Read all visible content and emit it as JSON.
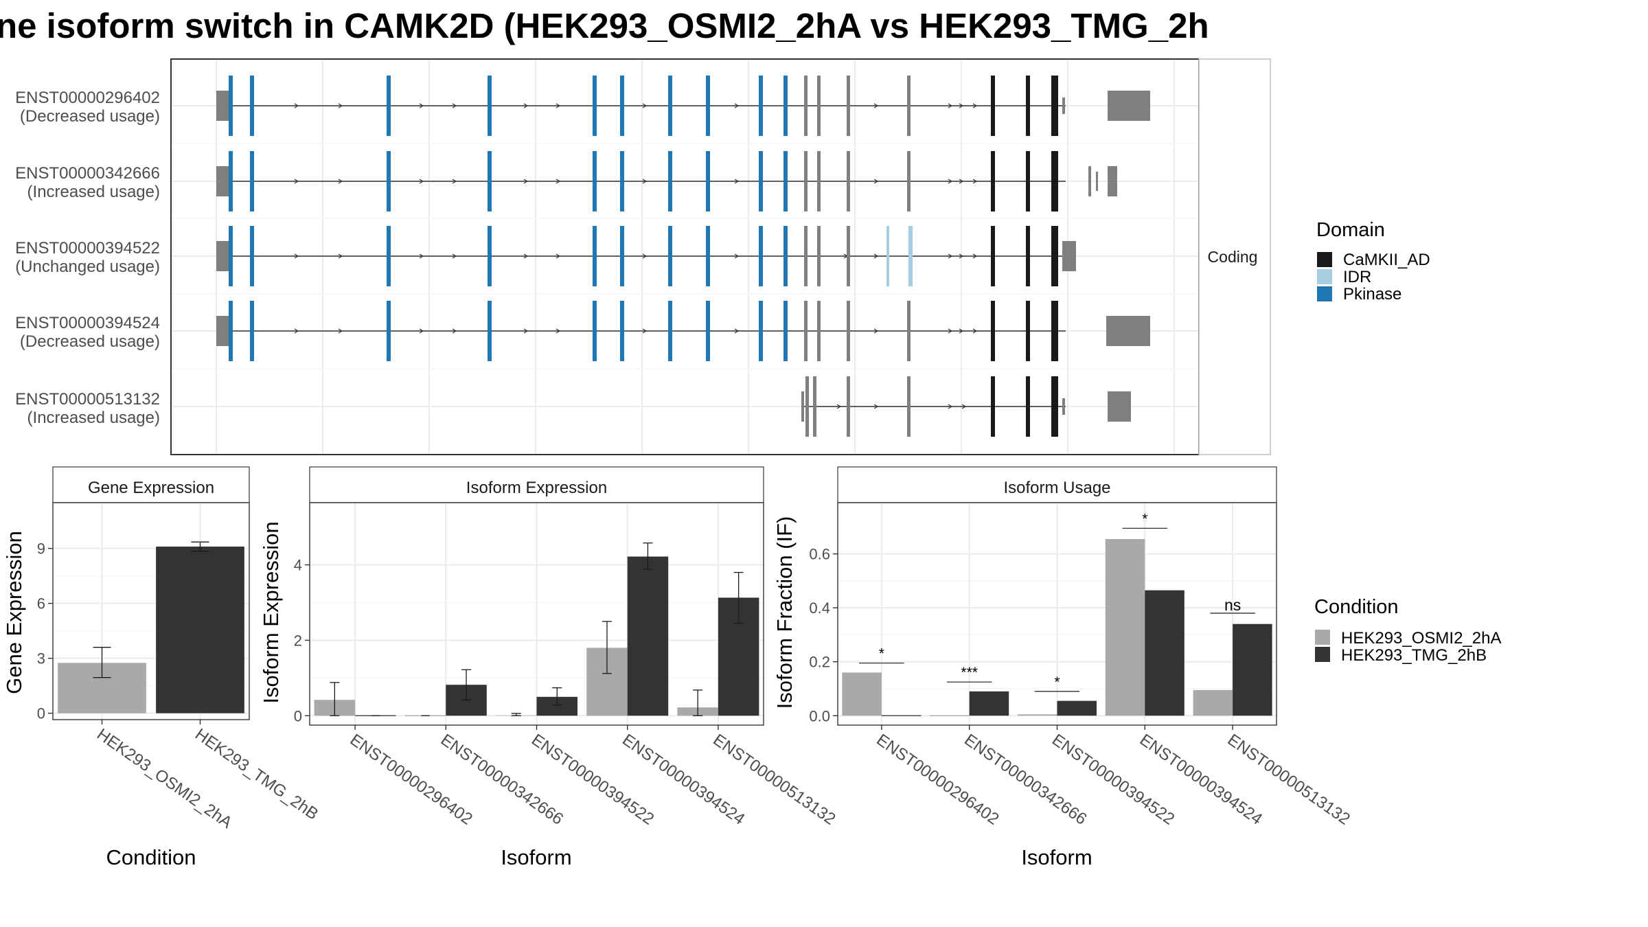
{
  "figure": {
    "title": "ne isoform switch in CAMK2D (HEK293_OSMI2_2hA vs HEK293_TMG_2h",
    "strip_label": "Coding"
  },
  "isoforms": [
    {
      "id": "ENST00000296402",
      "usage": "(Decreased usage)"
    },
    {
      "id": "ENST00000342666",
      "usage": "(Increased usage)"
    },
    {
      "id": "ENST00000394522",
      "usage": "(Unchanged usage)"
    },
    {
      "id": "ENST00000394524",
      "usage": "(Decreased usage)"
    },
    {
      "id": "ENST00000513132",
      "usage": "(Increased usage)"
    }
  ],
  "domain_legend": {
    "title": "Domain",
    "items": [
      {
        "label": "CaMKII_AD",
        "color": "#1a1a1a"
      },
      {
        "label": "IDR",
        "color": "#a6cee3"
      },
      {
        "label": "Pkinase",
        "color": "#1f78b4"
      }
    ]
  },
  "condition_legend": {
    "title": "Condition",
    "items": [
      {
        "label": "HEK293_OSMI2_2hA",
        "color": "#a9a9a9"
      },
      {
        "label": "HEK293_TMG_2hB",
        "color": "#333333"
      }
    ]
  },
  "chart_data": [
    {
      "type": "bar",
      "title": "Gene Expression",
      "xlabel": "Condition",
      "ylabel": "Gene Expression",
      "categories": [
        "HEK293_OSMI2_2hA",
        "HEK293_TMG_2hB"
      ],
      "values": [
        2.75,
        9.1
      ],
      "err_low": [
        1.95,
        8.85
      ],
      "err_high": [
        3.6,
        9.35
      ],
      "colors": [
        "#a9a9a9",
        "#333333"
      ],
      "ylim": [
        -0.35,
        11.5
      ],
      "yticks": [
        0,
        3,
        6,
        9
      ],
      "grid": true
    },
    {
      "type": "bar",
      "title": "Isoform Expression",
      "xlabel": "Isoform",
      "ylabel": "Isoform Expression",
      "categories": [
        "ENST00000296402",
        "ENST00000342666",
        "ENST00000394522",
        "ENST00000394524",
        "ENST00000513132"
      ],
      "series": [
        {
          "name": "HEK293_OSMI2_2hA",
          "values": [
            0.42,
            0.0,
            0.01,
            1.8,
            0.22
          ],
          "err_low": [
            0.0,
            0.0,
            0.0,
            1.12,
            0.0
          ],
          "err_high": [
            0.88,
            0.0,
            0.06,
            2.5,
            0.68
          ]
        },
        {
          "name": "HEK293_TMG_2hB",
          "values": [
            0.0,
            0.82,
            0.5,
            4.22,
            3.13
          ],
          "err_low": [
            0.0,
            0.42,
            0.28,
            3.88,
            2.45
          ],
          "err_high": [
            0.0,
            1.22,
            0.74,
            4.58,
            3.8
          ]
        }
      ],
      "ylim": [
        -0.25,
        5.65
      ],
      "yticks": [
        0,
        2,
        4
      ],
      "grid": true
    },
    {
      "type": "bar",
      "title": "Isoform Usage",
      "xlabel": "Isoform",
      "ylabel": "Isoform Fraction (IF)",
      "categories": [
        "ENST00000296402",
        "ENST00000342666",
        "ENST00000394522",
        "ENST00000394524",
        "ENST00000513132"
      ],
      "series": [
        {
          "name": "HEK293_OSMI2_2hA",
          "values": [
            0.16,
            0.0,
            0.005,
            0.655,
            0.095
          ]
        },
        {
          "name": "HEK293_TMG_2hB",
          "values": [
            0.0,
            0.09,
            0.055,
            0.465,
            0.34
          ]
        }
      ],
      "significance": [
        "*",
        "***",
        "*",
        "*",
        "ns"
      ],
      "sig_y": [
        0.195,
        0.125,
        0.09,
        0.695,
        0.38
      ],
      "ylim": [
        -0.035,
        0.79
      ],
      "yticks": [
        0.0,
        0.2,
        0.4,
        0.6
      ],
      "ytick_labels": [
        "0.0",
        "0.2",
        "0.4",
        "0.6"
      ],
      "grid": true
    }
  ]
}
